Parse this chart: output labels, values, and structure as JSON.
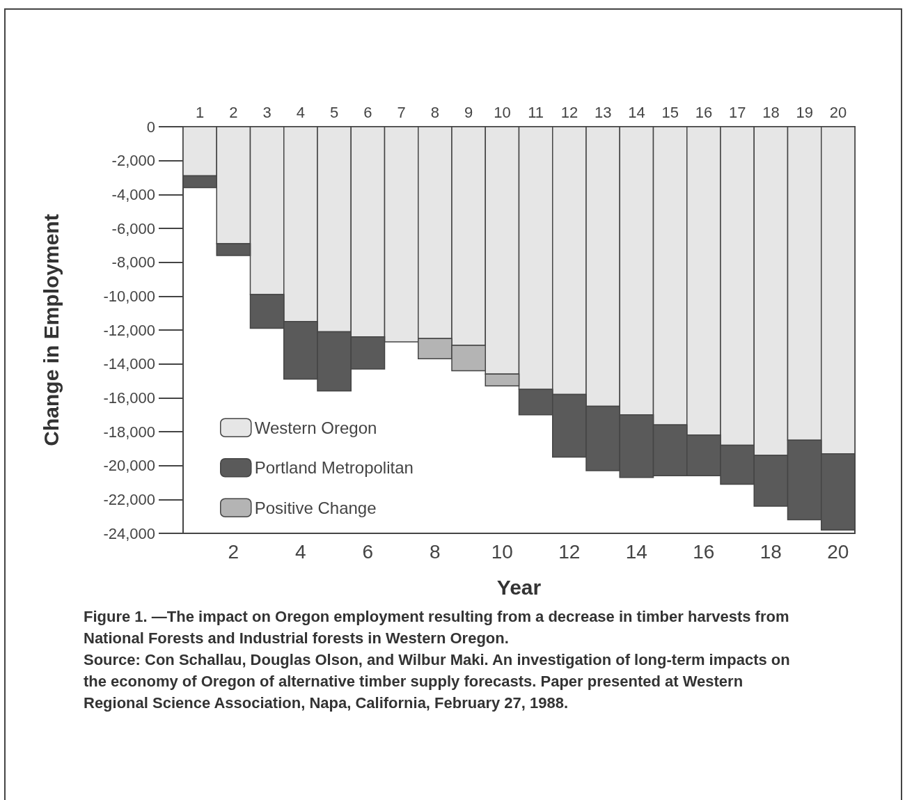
{
  "chart_data": {
    "type": "bar",
    "stacked": true,
    "xlabel": "Year",
    "ylabel": "Change in Employment",
    "x": [
      1,
      2,
      3,
      4,
      5,
      6,
      7,
      8,
      9,
      10,
      11,
      12,
      13,
      14,
      15,
      16,
      17,
      18,
      19,
      20
    ],
    "xlim": [
      0.5,
      20.5
    ],
    "xticks": [
      2,
      4,
      6,
      8,
      10,
      12,
      14,
      16,
      18,
      20
    ],
    "x2lim": [
      0.5,
      20.5
    ],
    "x2ticks": [
      1,
      2,
      3,
      4,
      5,
      6,
      7,
      8,
      9,
      10,
      11,
      12,
      13,
      14,
      15,
      16,
      17,
      18,
      19,
      20
    ],
    "ylim": [
      -24000,
      0
    ],
    "yticks": [
      0,
      {
        "value": -2000,
        "label": "-2,000"
      },
      {
        "value": -4000,
        "label": "-4,000"
      },
      {
        "value": -6000,
        "label": "-6,000"
      },
      {
        "value": -8000,
        "label": "-8,000"
      },
      {
        "value": -10000,
        "label": "-10,000"
      },
      {
        "value": -12000,
        "label": "-12,000"
      },
      {
        "value": -14000,
        "label": "-14,000"
      },
      {
        "value": -16000,
        "label": "-16,000"
      },
      {
        "value": -18000,
        "label": "-18,000"
      },
      {
        "value": -20000,
        "label": "-20,000"
      },
      {
        "value": -22000,
        "label": "-22,000"
      },
      {
        "value": -24000,
        "label": "-24,000"
      }
    ],
    "grid": false,
    "legend": "bottom left",
    "series": [
      {
        "name": "Western Oregon",
        "color": "#e6e6e6",
        "values": [
          -2900,
          -6900,
          -9900,
          -11500,
          -12100,
          -12400,
          -12700,
          -12500,
          -12900,
          -14600,
          -15500,
          -15800,
          -16500,
          -17000,
          -17600,
          -18200,
          -18800,
          -19400,
          -18500,
          -19300
        ]
      },
      {
        "name": "Portland Metropolitan",
        "color": "#5a5a5a",
        "values": [
          -700,
          -700,
          -2000,
          -3400,
          -3500,
          -1900,
          null,
          null,
          null,
          null,
          -1500,
          -3700,
          -3800,
          -3700,
          -3000,
          -2400,
          -2300,
          -3000,
          -4700,
          -4500
        ]
      },
      {
        "name": "Positive Change",
        "color": "#b4b4b4",
        "values": [
          null,
          null,
          null,
          null,
          null,
          null,
          null,
          -1200,
          -1500,
          -700,
          null,
          null,
          null,
          null,
          null,
          null,
          null,
          null,
          null,
          null
        ]
      }
    ],
    "annotations": [
      "Figure 1. —The impact on Oregon employment resulting from a decrease in timber harvests from National Forests and Industrial forests in Western Oregon.",
      "Source: Con Schallau, Douglas Olson, and Wilbur Maki. An investigation of long-term impacts on the economy of Oregon of alternative timber supply forecasts. Paper presented at Western Regional Science Association, Napa, California, February 27, 1988."
    ]
  }
}
